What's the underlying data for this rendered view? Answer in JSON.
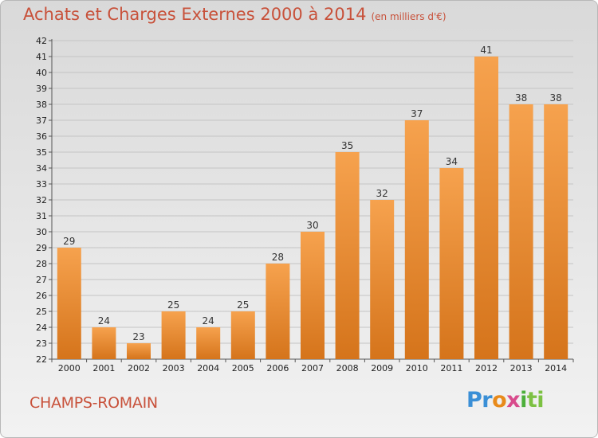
{
  "title": "Achats et Charges Externes 2000 à 2014",
  "subtitle": "(en milliers d'€)",
  "footer_label": "CHAMPS-ROMAIN",
  "logo_text": "Proxiti",
  "colors": {
    "bar_top": "#f6a24e",
    "bar_bottom": "#d5741b",
    "title": "#c8513a"
  },
  "chart_data": {
    "type": "bar",
    "title": "Achats et Charges Externes 2000 à 2014",
    "xlabel": "",
    "ylabel": "",
    "categories": [
      "2000",
      "2001",
      "2002",
      "2003",
      "2004",
      "2005",
      "2006",
      "2007",
      "2008",
      "2009",
      "2010",
      "2011",
      "2012",
      "2013",
      "2014"
    ],
    "values": [
      29,
      24,
      23,
      25,
      24,
      25,
      28,
      30,
      35,
      32,
      37,
      34,
      41,
      38,
      38
    ],
    "ylim": [
      22,
      42
    ],
    "yticks": [
      22,
      23,
      24,
      25,
      26,
      27,
      28,
      29,
      30,
      31,
      32,
      33,
      34,
      35,
      36,
      37,
      38,
      39,
      40,
      41,
      42
    ],
    "grid": true
  }
}
